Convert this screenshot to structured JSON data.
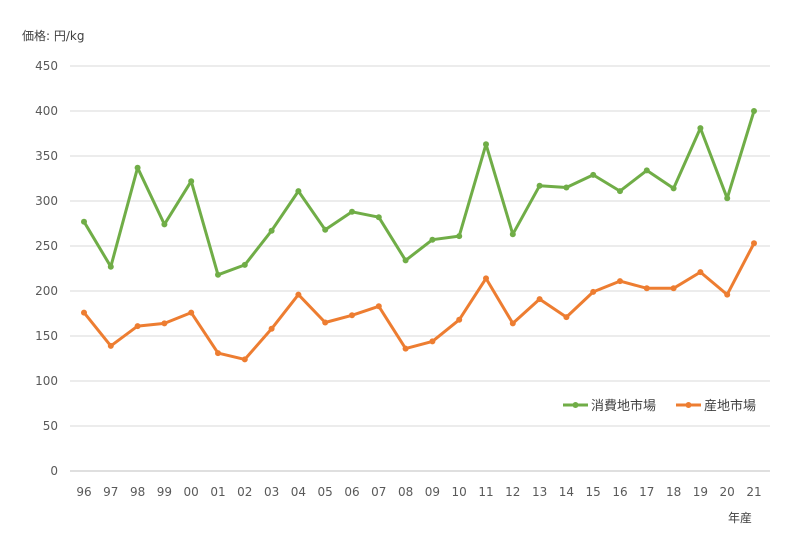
{
  "chart_data": {
    "type": "line",
    "ylabel": "価格: 円/kg",
    "xlabel": "年産",
    "ylim": [
      0,
      450
    ],
    "yticks": [
      0,
      50,
      100,
      150,
      200,
      250,
      300,
      350,
      400,
      450
    ],
    "grid": true,
    "legend_position": "right, inside plot, near bottom",
    "categories": [
      "96",
      "97",
      "98",
      "99",
      "00",
      "01",
      "02",
      "03",
      "04",
      "05",
      "06",
      "07",
      "08",
      "09",
      "10",
      "11",
      "12",
      "13",
      "14",
      "15",
      "16",
      "17",
      "18",
      "19",
      "20",
      "21"
    ],
    "series": [
      {
        "name": "消費地市場",
        "color": "#70ad47",
        "values": [
          277,
          227,
          337,
          274,
          322,
          218,
          229,
          267,
          311,
          268,
          288,
          282,
          234,
          257,
          261,
          363,
          263,
          317,
          315,
          329,
          311,
          334,
          314,
          381,
          303,
          400
        ]
      },
      {
        "name": "産地市場",
        "color": "#ed7d31",
        "values": [
          176,
          139,
          161,
          164,
          176,
          131,
          124,
          158,
          196,
          165,
          173,
          183,
          136,
          144,
          168,
          214,
          164,
          191,
          171,
          199,
          211,
          203,
          203,
          221,
          196,
          253
        ]
      }
    ]
  }
}
